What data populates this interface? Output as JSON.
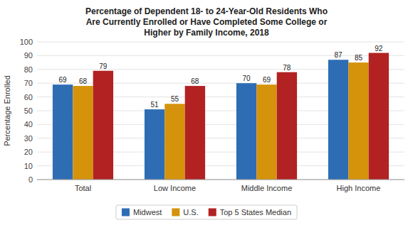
{
  "chart_data": {
    "type": "bar",
    "title": "Percentage of Dependent 18- to 24-Year-Old Residents Who\nAre Currently Enrolled or Have Completed Some College or\nHigher by Family Income, 2018",
    "ylabel": "Percentage Enrolled",
    "categories": [
      "Total",
      "Low Income",
      "Middle Income",
      "High Income"
    ],
    "series": [
      {
        "name": "Midwest",
        "color": "#2e6db4",
        "values": [
          69,
          51,
          70,
          87
        ]
      },
      {
        "name": "U.S.",
        "color": "#d4930a",
        "values": [
          68,
          55,
          69,
          85
        ]
      },
      {
        "name": "Top 5 States Median",
        "color": "#b22222",
        "values": [
          79,
          68,
          78,
          92
        ]
      }
    ],
    "ylim": [
      0,
      100
    ],
    "yticks": [
      0,
      10,
      20,
      30,
      40,
      50,
      60,
      70,
      80,
      90,
      100
    ],
    "grid": true,
    "data_labels": true,
    "legend": "bottom"
  }
}
